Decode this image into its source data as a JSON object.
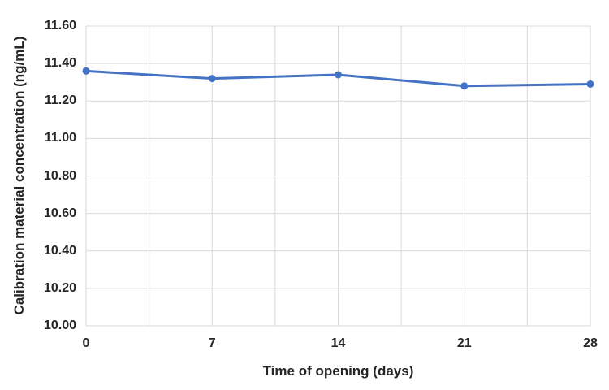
{
  "chart_data": {
    "type": "line",
    "title": "",
    "xlabel": "Time of opening (days)",
    "ylabel": "Calibration material concentration (ng/mL)",
    "x": [
      0,
      7,
      14,
      21,
      28
    ],
    "series": [
      {
        "name": "Calibration material concentration",
        "values": [
          11.36,
          11.32,
          11.34,
          11.28,
          11.29
        ]
      }
    ],
    "xlim": [
      0,
      28
    ],
    "ylim": [
      10.0,
      11.6
    ],
    "y_tick_step": 0.2,
    "x_tick_step": 7,
    "x_grid_step": 3.5,
    "y_tick_labels": [
      "10.00",
      "10.20",
      "10.40",
      "10.60",
      "10.80",
      "11.00",
      "11.20",
      "11.40",
      "11.60"
    ],
    "x_tick_labels": [
      "0",
      "7",
      "14",
      "21",
      "28"
    ],
    "grid": true,
    "legend": "none",
    "line_color": "#4472C4",
    "marker": "circle",
    "gridline_color": "#D9D9D9",
    "text_color": "#262626",
    "background": "#FFFFFF"
  }
}
